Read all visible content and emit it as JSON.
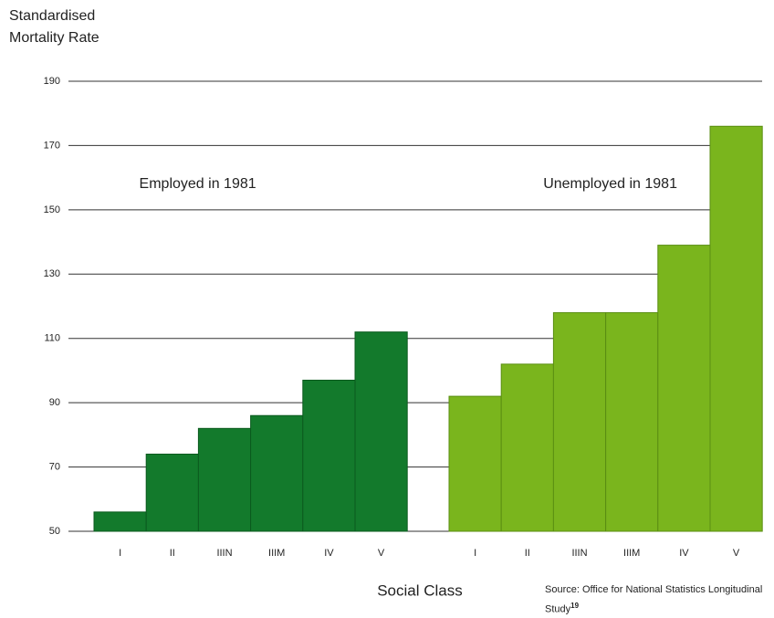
{
  "chart_data": {
    "type": "bar",
    "ylabel": "Standardised Mortality Rate",
    "xlabel": "Social Class",
    "source": "Source: Office for National Statistics Longitudinal Study",
    "source_ref": "19",
    "categories": [
      "I",
      "II",
      "IIIN",
      "IIIM",
      "IV",
      "V"
    ],
    "series": [
      {
        "name": "Employed in 1981",
        "color": "#137a2c",
        "values": [
          56,
          74,
          82,
          86,
          97,
          112
        ]
      },
      {
        "name": "Unemployed in 1981",
        "color": "#7ab51d",
        "values": [
          92,
          102,
          118,
          118,
          139,
          176
        ]
      }
    ],
    "ylim": [
      50,
      190
    ],
    "yticks": [
      50,
      70,
      90,
      110,
      130,
      150,
      170,
      190
    ],
    "grid": true
  }
}
